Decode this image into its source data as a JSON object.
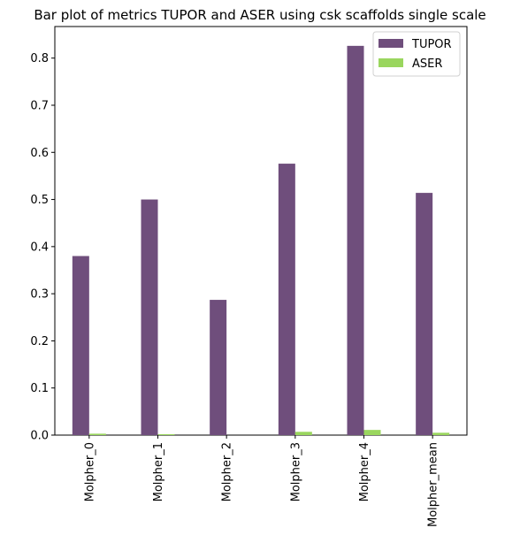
{
  "chart_data": {
    "type": "bar",
    "title": "Bar plot of metrics TUPOR and ASER using csk scaffolds single scale",
    "xlabel": "",
    "ylabel": "",
    "categories": [
      "Molpher_0",
      "Molpher_1",
      "Molpher_2",
      "Molpher_3",
      "Molpher_4",
      "Molpher_mean"
    ],
    "series": [
      {
        "name": "TUPOR",
        "color": "#6f4e7c",
        "values": [
          0.38,
          0.5,
          0.287,
          0.576,
          0.826,
          0.514
        ]
      },
      {
        "name": "ASER",
        "color": "#9ad65e",
        "values": [
          0.003,
          0.002,
          0.0,
          0.007,
          0.011,
          0.005
        ]
      }
    ],
    "ylim": [
      0,
      0.867
    ],
    "yticks": [
      0.0,
      0.1,
      0.2,
      0.3,
      0.4,
      0.5,
      0.6,
      0.7,
      0.8
    ],
    "ytick_labels": [
      "0.0",
      "0.1",
      "0.2",
      "0.3",
      "0.4",
      "0.5",
      "0.6",
      "0.7",
      "0.8"
    ],
    "grid": false,
    "legend_position": "top-right"
  }
}
